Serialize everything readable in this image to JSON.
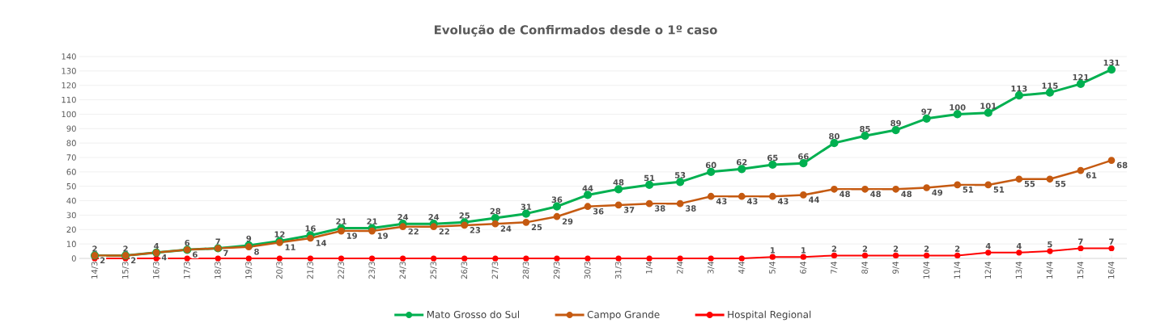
{
  "chart_data": {
    "type": "line",
    "title": "Evolução de Confirmados desde o 1º caso",
    "categories": [
      "14/3",
      "15/3",
      "16/3",
      "17/3",
      "18/3",
      "19/3",
      "20/3",
      "21/3",
      "22/3",
      "23/3",
      "24/3",
      "25/3",
      "26/3",
      "27/3",
      "28/3",
      "29/3",
      "30/3",
      "31/3",
      "1/4",
      "2/4",
      "3/4",
      "4/4",
      "5/4",
      "6/4",
      "7/4",
      "8/4",
      "9/4",
      "10/4",
      "11/4",
      "12/4",
      "13/4",
      "14/4",
      "15/4",
      "16/4"
    ],
    "series": [
      {
        "name": "Mato Grosso do Sul",
        "color": "#00b050",
        "values": [
          2,
          2,
          4,
          6,
          7,
          9,
          12,
          16,
          21,
          21,
          24,
          24,
          25,
          28,
          31,
          36,
          44,
          48,
          51,
          53,
          60,
          62,
          65,
          66,
          80,
          85,
          89,
          97,
          100,
          101,
          113,
          115,
          121,
          131
        ],
        "value_labels": [
          "2",
          "2",
          "4",
          "6",
          "7",
          "9",
          "12",
          "16",
          "21",
          "21",
          "24",
          "24",
          "25",
          "28",
          "31",
          "36",
          "44",
          "48",
          "51",
          "53",
          "60",
          "62",
          "65",
          "66",
          "80",
          "85",
          "89",
          "97",
          "100",
          "101",
          "113",
          "115",
          "121",
          "131"
        ]
      },
      {
        "name": "Campo Grande",
        "color": "#c55a11",
        "values": [
          2,
          2,
          4,
          6,
          7,
          8,
          11,
          14,
          19,
          19,
          22,
          22,
          23,
          24,
          25,
          29,
          36,
          37,
          38,
          38,
          43,
          43,
          43,
          44,
          48,
          48,
          48,
          49,
          51,
          51,
          55,
          55,
          61,
          68
        ],
        "value_labels": [
          "2",
          "2",
          "4",
          "6",
          "7",
          "8",
          "11",
          "14",
          "19",
          "19",
          "22",
          "22",
          "23",
          "24",
          "25",
          "29",
          "36",
          "37",
          "38",
          "38",
          "43",
          "43",
          "43",
          "44",
          "48",
          "48",
          "48",
          "49",
          "51",
          "51",
          "55",
          "55",
          "61",
          "68"
        ]
      },
      {
        "name": "Hospital Regional",
        "color": "#ff0000",
        "values": [
          0,
          0,
          0,
          0,
          0,
          0,
          0,
          0,
          0,
          0,
          0,
          0,
          0,
          0,
          0,
          0,
          0,
          0,
          0,
          0,
          0,
          0,
          1,
          1,
          2,
          2,
          2,
          2,
          2,
          4,
          4,
          5,
          7,
          7
        ],
        "value_labels": [
          null,
          null,
          null,
          null,
          null,
          null,
          null,
          null,
          null,
          null,
          null,
          null,
          null,
          null,
          null,
          null,
          null,
          null,
          null,
          null,
          null,
          null,
          "1",
          "1",
          "2",
          "2",
          "2",
          "2",
          "2",
          "4",
          "4",
          "5",
          "7",
          "7"
        ]
      }
    ],
    "ylim": [
      0,
      140
    ],
    "yticks": [
      0,
      10,
      20,
      30,
      40,
      50,
      60,
      70,
      80,
      90,
      100,
      110,
      120,
      130,
      140
    ],
    "grid": "y",
    "legend": "bottom",
    "marker": "circle",
    "line_style": "solid"
  }
}
